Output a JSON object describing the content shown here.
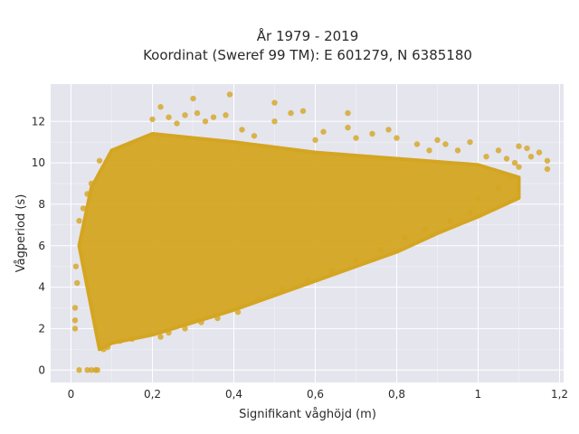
{
  "chart_data": {
    "type": "scatter",
    "title_lines": [
      "År 1979 - 2019",
      "Koordinat (Sweref 99 TM): E 601279, N 6385180"
    ],
    "xlabel": "Signifikant våghöjd (m)",
    "ylabel": "Vågperiod (s)",
    "xlim": [
      -0.05,
      1.21
    ],
    "ylim": [
      -0.6,
      13.8
    ],
    "xticks": [
      0,
      0.2,
      0.4,
      0.6,
      0.8,
      1,
      1.2
    ],
    "xtick_labels": [
      "0",
      "0,2",
      "0,4",
      "0,6",
      "0,8",
      "1",
      "1,2"
    ],
    "yticks": [
      0,
      2,
      4,
      6,
      8,
      10,
      12
    ],
    "ytick_labels": [
      "0",
      "2",
      "4",
      "6",
      "8",
      "10",
      "12"
    ],
    "grid": true,
    "background": "#e5e5ee",
    "marker_color": "#d4a521",
    "dense_region": {
      "lower_boundary": [
        [
          0.07,
          1.0
        ],
        [
          0.1,
          1.3
        ],
        [
          0.2,
          1.7
        ],
        [
          0.3,
          2.3
        ],
        [
          0.4,
          2.9
        ],
        [
          0.5,
          3.6
        ],
        [
          0.6,
          4.3
        ],
        [
          0.7,
          5.0
        ],
        [
          0.8,
          5.7
        ],
        [
          0.9,
          6.6
        ],
        [
          1.0,
          7.4
        ],
        [
          1.1,
          8.3
        ]
      ],
      "upper_boundary": [
        [
          0.02,
          6.0
        ],
        [
          0.05,
          8.8
        ],
        [
          0.1,
          10.6
        ],
        [
          0.2,
          11.4
        ],
        [
          0.4,
          11.0
        ],
        [
          0.6,
          10.5
        ],
        [
          0.8,
          10.2
        ],
        [
          1.0,
          9.9
        ],
        [
          1.1,
          9.3
        ]
      ]
    },
    "points": [
      [
        0.02,
        0.0
      ],
      [
        0.04,
        0.0
      ],
      [
        0.05,
        0.0
      ],
      [
        0.06,
        0.0
      ],
      [
        0.065,
        0.0
      ],
      [
        0.01,
        2.0
      ],
      [
        0.01,
        2.4
      ],
      [
        0.01,
        3.0
      ],
      [
        0.012,
        5.0
      ],
      [
        0.015,
        4.2
      ],
      [
        0.02,
        7.2
      ],
      [
        0.03,
        7.8
      ],
      [
        0.04,
        8.5
      ],
      [
        0.05,
        9.0
      ],
      [
        0.07,
        10.1
      ],
      [
        0.2,
        12.1
      ],
      [
        0.22,
        12.7
      ],
      [
        0.24,
        12.2
      ],
      [
        0.26,
        11.9
      ],
      [
        0.28,
        12.3
      ],
      [
        0.3,
        13.1
      ],
      [
        0.31,
        12.4
      ],
      [
        0.33,
        12.0
      ],
      [
        0.35,
        12.2
      ],
      [
        0.38,
        12.3
      ],
      [
        0.39,
        13.3
      ],
      [
        0.42,
        11.6
      ],
      [
        0.45,
        11.3
      ],
      [
        0.5,
        12.0
      ],
      [
        0.5,
        12.9
      ],
      [
        0.54,
        12.4
      ],
      [
        0.57,
        12.5
      ],
      [
        0.6,
        11.1
      ],
      [
        0.62,
        11.5
      ],
      [
        0.68,
        11.7
      ],
      [
        0.68,
        12.4
      ],
      [
        0.7,
        11.2
      ],
      [
        0.74,
        11.4
      ],
      [
        0.78,
        11.6
      ],
      [
        0.8,
        11.2
      ],
      [
        0.85,
        10.9
      ],
      [
        0.88,
        10.6
      ],
      [
        0.9,
        11.1
      ],
      [
        0.92,
        10.9
      ],
      [
        0.95,
        10.6
      ],
      [
        0.98,
        11.0
      ],
      [
        1.02,
        10.3
      ],
      [
        1.05,
        10.6
      ],
      [
        1.07,
        10.2
      ],
      [
        1.09,
        10.0
      ],
      [
        1.1,
        10.8
      ],
      [
        1.12,
        10.7
      ],
      [
        1.13,
        10.3
      ],
      [
        1.15,
        10.5
      ],
      [
        1.17,
        10.1
      ],
      [
        1.17,
        9.7
      ],
      [
        1.1,
        9.8
      ],
      [
        1.08,
        9.3
      ],
      [
        1.05,
        8.8
      ],
      [
        1.0,
        8.3
      ],
      [
        0.98,
        7.6
      ],
      [
        0.93,
        7.2
      ],
      [
        0.87,
        6.8
      ],
      [
        0.82,
        6.4
      ],
      [
        0.76,
        5.8
      ],
      [
        0.7,
        5.3
      ],
      [
        0.64,
        4.8
      ],
      [
        0.58,
        4.3
      ],
      [
        0.52,
        3.9
      ],
      [
        0.46,
        3.4
      ],
      [
        0.41,
        2.8
      ],
      [
        0.36,
        2.5
      ],
      [
        0.32,
        2.3
      ],
      [
        0.28,
        2.0
      ],
      [
        0.24,
        1.8
      ],
      [
        0.22,
        1.6
      ],
      [
        0.15,
        1.5
      ],
      [
        0.12,
        1.4
      ],
      [
        0.09,
        1.1
      ],
      [
        0.08,
        1.0
      ]
    ]
  }
}
